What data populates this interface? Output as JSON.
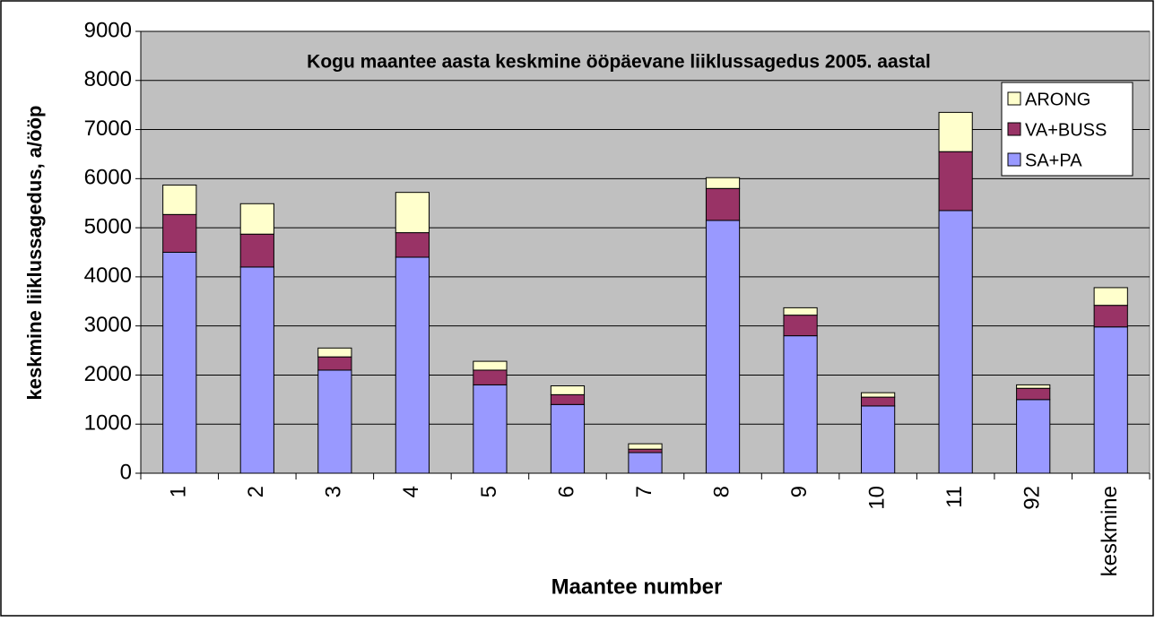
{
  "chart_data": {
    "type": "stacked_bar",
    "title": "Kogu maantee aasta keskmine ööpäevane liiklussagedus 2005. aastal",
    "x_label": "Maantee number",
    "y_label": "keskmine liiklussagedus, a/ööp",
    "categories": [
      "1",
      "2",
      "3",
      "4",
      "5",
      "6",
      "7",
      "8",
      "9",
      "10",
      "11",
      "92",
      "keskmine"
    ],
    "series": [
      {
        "name": "SA+PA",
        "color": "#9999ff",
        "values": [
          4500,
          4200,
          2100,
          4400,
          1800,
          1400,
          420,
          5150,
          2800,
          1370,
          5350,
          1500,
          2980
        ]
      },
      {
        "name": "VA+BUSS",
        "color": "#993366",
        "values": [
          770,
          670,
          270,
          500,
          300,
          200,
          70,
          650,
          420,
          180,
          1200,
          230,
          440
        ]
      },
      {
        "name": "ARONG",
        "color": "#ffffcc",
        "values": [
          600,
          620,
          180,
          820,
          180,
          180,
          110,
          220,
          150,
          90,
          800,
          70,
          360
        ]
      }
    ],
    "ylim": [
      0,
      9000
    ],
    "yticks": [
      0,
      1000,
      2000,
      3000,
      4000,
      5000,
      6000,
      7000,
      8000,
      9000
    ],
    "grid": true,
    "legend": "upper right"
  }
}
